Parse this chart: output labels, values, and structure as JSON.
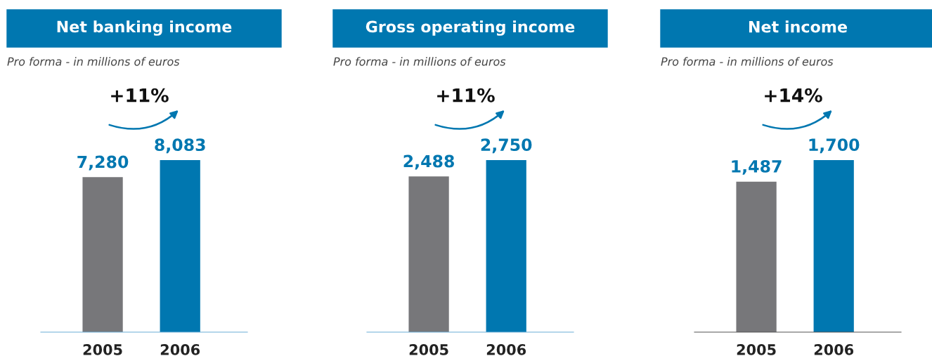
{
  "chart_data": [
    {
      "type": "bar",
      "title": "Net banking income",
      "subtitle": "Pro forma - in millions of euros",
      "categories": [
        "2005",
        "2006"
      ],
      "values": [
        7280,
        8083
      ],
      "colors": [
        "#77777a",
        "#0077b0"
      ],
      "data_labels": true,
      "value_labels": [
        "7,280",
        "8,083"
      ],
      "annotations": [
        "+11%"
      ],
      "tick_labels": "x",
      "grid": false,
      "legend": false
    },
    {
      "type": "bar",
      "title": "Gross operating income",
      "subtitle": "Pro forma - in millions of euros",
      "categories": [
        "2005",
        "2006"
      ],
      "values": [
        2488,
        2750
      ],
      "colors": [
        "#77777a",
        "#0077b0"
      ],
      "data_labels": true,
      "value_labels": [
        "2,488",
        "2,750"
      ],
      "annotations": [
        "+11%"
      ],
      "tick_labels": "x",
      "grid": false,
      "legend": false
    },
    {
      "type": "bar",
      "title": "Net income",
      "subtitle": "Pro forma - in millions of euros",
      "categories": [
        "2005",
        "2006"
      ],
      "values": [
        1487,
        1700
      ],
      "colors": [
        "#77777a",
        "#0077b0"
      ],
      "data_labels": true,
      "value_labels": [
        "1,487",
        "1,700"
      ],
      "annotations": [
        "+14%"
      ],
      "tick_labels": "x",
      "grid": false,
      "legend": false
    }
  ]
}
